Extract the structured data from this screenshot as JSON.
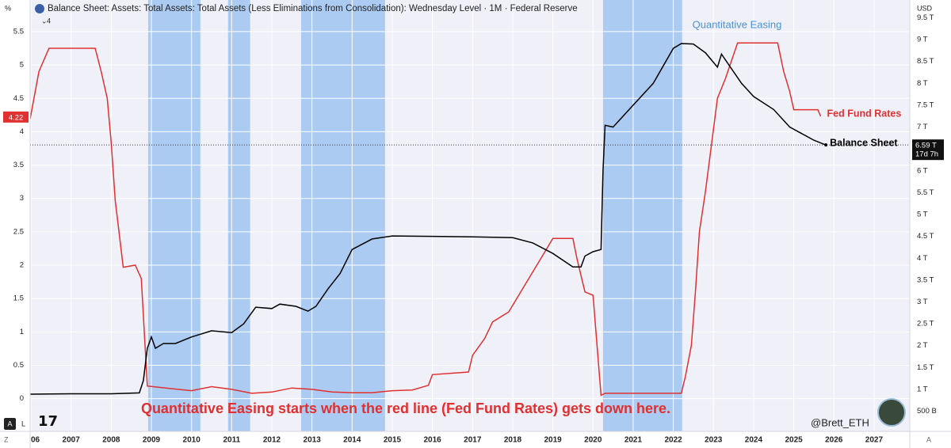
{
  "ui": {
    "left_unit": "%",
    "right_unit": "USD",
    "indicator_count": "4",
    "btn_auto": "A",
    "btn_log": "L",
    "btn_zoom": "Z",
    "btn_auto_right": "A",
    "countdown": "17d 7h",
    "watermark": "@Brett_ETH"
  },
  "chart_data": {
    "type": "line",
    "title": "Balance Sheet: Assets: Total Assets: Total Assets (Less Eliminations from Consolidation): Wednesday Level · 1M · Federal Reserve",
    "annotations": [
      {
        "text": "Quantitative Easing",
        "color": "#4a90d9"
      },
      {
        "text": "Quantitative Easing starts when the red line (Fed Fund Rates) gets down here.",
        "color": "#e03030"
      }
    ],
    "shaded_regions": [
      [
        2008.92,
        2010.22
      ],
      [
        2010.91,
        2011.46
      ],
      [
        2012.73,
        2014.82
      ],
      [
        2020.25,
        2022.22
      ]
    ],
    "shade_color": "#abcbf2",
    "xlim": [
      2005.98,
      2027.89
    ],
    "xticks": [
      {
        "value": 2006,
        "label": "06"
      },
      2007,
      2008,
      2009,
      2010,
      2011,
      2012,
      2013,
      2014,
      2015,
      2016,
      2017,
      2018,
      2019,
      2020,
      2021,
      2022,
      2023,
      2024,
      2025,
      2026,
      2027
    ],
    "ylim": [
      -0.49,
      5.76
    ],
    "yticks": [
      0,
      0.5,
      1,
      1.5,
      2,
      2.5,
      3,
      3.5,
      4,
      4.5,
      5,
      5.5
    ],
    "y2lim": [
      0.04,
      9.58
    ],
    "y2ticks": [
      {
        "value": 0.5,
        "label": "500 B"
      },
      {
        "value": 1,
        "label": "1 T"
      },
      {
        "value": 1.5,
        "label": "1.5 T"
      },
      {
        "value": 2,
        "label": "2 T"
      },
      {
        "value": 2.5,
        "label": "2.5 T"
      },
      {
        "value": 3,
        "label": "3 T"
      },
      {
        "value": 3.5,
        "label": "3.5 T"
      },
      {
        "value": 4,
        "label": "4 T"
      },
      {
        "value": 4.5,
        "label": "4.5 T"
      },
      {
        "value": 5,
        "label": "5 T"
      },
      {
        "value": 5.5,
        "label": "5.5 T"
      },
      {
        "value": 6,
        "label": "6 T"
      },
      {
        "value": 6.5,
        "label": "6.5 T"
      },
      {
        "value": 7,
        "label": "7 T"
      },
      {
        "value": 7.5,
        "label": "7.5 T"
      },
      {
        "value": 8,
        "label": "8 T"
      },
      {
        "value": 8.5,
        "label": "8.5 T"
      },
      {
        "value": 9,
        "label": "9 T"
      },
      {
        "value": 9.5,
        "label": "9.5 T"
      }
    ],
    "grid": true,
    "series": [
      {
        "name": "Fed Fund Rates",
        "color": "#e03030",
        "axis": "y",
        "current": 4.22,
        "x": [
          2005.98,
          2006.2,
          2006.45,
          2007.6,
          2007.75,
          2007.9,
          2008.0,
          2008.1,
          2008.3,
          2008.6,
          2008.75,
          2008.9,
          2009.5,
          2010.0,
          2010.5,
          2011.0,
          2011.5,
          2012.0,
          2012.5,
          2013.0,
          2013.5,
          2014.0,
          2014.5,
          2015.0,
          2015.5,
          2015.9,
          2016.0,
          2016.9,
          2017.0,
          2017.3,
          2017.5,
          2017.9,
          2018.2,
          2018.5,
          2018.8,
          2019.0,
          2019.5,
          2019.6,
          2019.8,
          2020.0,
          2020.2,
          2020.3,
          2022.2,
          2022.3,
          2022.45,
          2022.55,
          2022.65,
          2022.8,
          2022.95,
          2023.1,
          2023.3,
          2023.6,
          2024.6,
          2024.75,
          2024.9,
          2025.0,
          2025.6,
          2025.67
        ],
        "values": [
          4.19,
          4.9,
          5.25,
          5.25,
          4.9,
          4.5,
          3.84,
          2.97,
          1.97,
          2.0,
          1.8,
          0.19,
          0.15,
          0.12,
          0.18,
          0.14,
          0.08,
          0.1,
          0.16,
          0.14,
          0.1,
          0.09,
          0.09,
          0.12,
          0.13,
          0.2,
          0.36,
          0.4,
          0.65,
          0.9,
          1.15,
          1.3,
          1.6,
          1.9,
          2.2,
          2.4,
          2.4,
          2.1,
          1.6,
          1.55,
          0.05,
          0.08,
          0.08,
          0.33,
          0.8,
          1.6,
          2.5,
          3.1,
          3.8,
          4.5,
          4.8,
          5.33,
          5.33,
          4.9,
          4.6,
          4.33,
          4.33,
          4.23
        ]
      },
      {
        "name": "Balance Sheet",
        "color": "#000000",
        "axis": "y2",
        "current": {
          "value": 6.59,
          "label": "6.59 T"
        },
        "x": [
          2005.98,
          2007.0,
          2008.0,
          2008.7,
          2008.8,
          2008.9,
          2009.0,
          2009.1,
          2009.3,
          2009.6,
          2010.0,
          2010.5,
          2011.0,
          2011.3,
          2011.6,
          2012.0,
          2012.2,
          2012.6,
          2012.9,
          2013.1,
          2013.4,
          2013.7,
          2014.0,
          2014.5,
          2015.0,
          2016.0,
          2017.0,
          2018.0,
          2018.5,
          2019.0,
          2019.5,
          2019.7,
          2019.8,
          2020.0,
          2020.2,
          2020.25,
          2020.3,
          2020.5,
          2020.6,
          2021.0,
          2021.5,
          2022.0,
          2022.2,
          2022.5,
          2022.8,
          2023.1,
          2023.2,
          2023.4,
          2023.7,
          2024.0,
          2024.5,
          2024.9,
          2025.2,
          2025.5,
          2025.8
        ],
        "values": [
          0.89,
          0.9,
          0.9,
          0.92,
          1.2,
          1.94,
          2.2,
          1.94,
          2.05,
          2.05,
          2.2,
          2.34,
          2.3,
          2.5,
          2.88,
          2.85,
          2.95,
          2.9,
          2.79,
          2.9,
          3.3,
          3.65,
          4.2,
          4.44,
          4.51,
          4.5,
          4.49,
          4.47,
          4.35,
          4.11,
          3.8,
          3.8,
          4.05,
          4.15,
          4.2,
          6.0,
          7.04,
          7.0,
          7.1,
          7.5,
          8.0,
          8.8,
          8.91,
          8.9,
          8.7,
          8.37,
          8.67,
          8.4,
          8.0,
          7.7,
          7.4,
          7.0,
          6.85,
          6.7,
          6.59
        ]
      }
    ]
  }
}
